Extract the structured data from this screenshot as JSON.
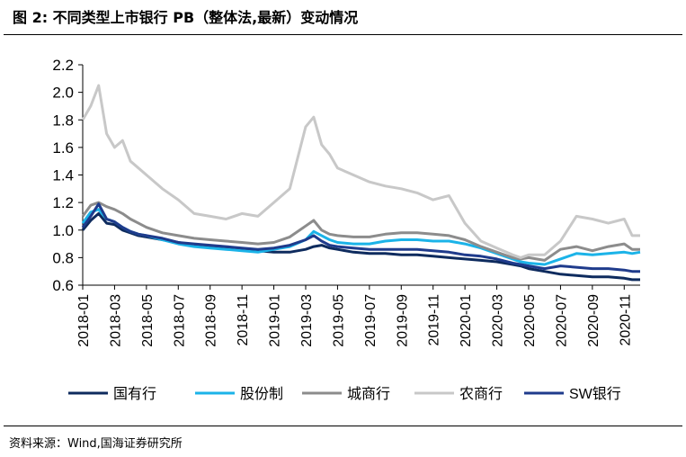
{
  "figure": {
    "title": "图 2:  不同类型上市银行 PB（整体法,最新）变动情况",
    "source": "资料来源：Wind,国海证券研究所"
  },
  "chart_data": {
    "type": "line",
    "y_ticks": [
      "0.6",
      "0.8",
      "1.0",
      "1.2",
      "1.4",
      "1.6",
      "1.8",
      "2.0",
      "2.2"
    ],
    "ylim": [
      0.6,
      2.2
    ],
    "x_ticks": [
      "2018-01",
      "2018-03",
      "2018-05",
      "2018-07",
      "2018-09",
      "2018-11",
      "2019-01",
      "2019-03",
      "2019-05",
      "2019-07",
      "2019-09",
      "2019-11",
      "2020-01",
      "2020-03",
      "2020-05",
      "2020-07",
      "2020-09",
      "2020-11"
    ],
    "xlim": [
      0,
      35
    ],
    "grid": false,
    "legend_position": "bottom",
    "series": [
      {
        "name": "国有行",
        "color": "#0e2b5e",
        "x": [
          0,
          0.5,
          1,
          1.5,
          2,
          2.5,
          3,
          3.5,
          4,
          5,
          6,
          7,
          8,
          9,
          10,
          11,
          12,
          13,
          14,
          14.5,
          15,
          15.5,
          16,
          17,
          18,
          19,
          20,
          21,
          22,
          23,
          24,
          25,
          26,
          27,
          27.5,
          28,
          29,
          30,
          31,
          32,
          33,
          34,
          34.5,
          35
        ],
        "y": [
          1.0,
          1.07,
          1.12,
          1.05,
          1.04,
          1.0,
          0.98,
          0.96,
          0.95,
          0.93,
          0.91,
          0.89,
          0.88,
          0.87,
          0.86,
          0.85,
          0.84,
          0.84,
          0.86,
          0.88,
          0.89,
          0.87,
          0.86,
          0.84,
          0.83,
          0.83,
          0.82,
          0.82,
          0.81,
          0.8,
          0.79,
          0.78,
          0.77,
          0.75,
          0.74,
          0.72,
          0.7,
          0.68,
          0.67,
          0.66,
          0.66,
          0.65,
          0.64,
          0.64
        ]
      },
      {
        "name": "股份制",
        "color": "#1bb3e8",
        "x": [
          0,
          0.5,
          1,
          1.5,
          2,
          2.5,
          3,
          3.5,
          4,
          5,
          6,
          7,
          8,
          9,
          10,
          11,
          12,
          13,
          14,
          14.5,
          15,
          15.5,
          16,
          17,
          18,
          19,
          20,
          21,
          22,
          23,
          24,
          25,
          26,
          27,
          27.5,
          28,
          29,
          30,
          31,
          32,
          33,
          34,
          34.5,
          35
        ],
        "y": [
          1.05,
          1.13,
          1.15,
          1.08,
          1.06,
          1.02,
          0.99,
          0.97,
          0.96,
          0.93,
          0.9,
          0.88,
          0.87,
          0.86,
          0.85,
          0.84,
          0.86,
          0.88,
          0.93,
          0.99,
          0.96,
          0.93,
          0.91,
          0.9,
          0.9,
          0.92,
          0.93,
          0.93,
          0.92,
          0.92,
          0.9,
          0.87,
          0.83,
          0.79,
          0.77,
          0.76,
          0.75,
          0.79,
          0.83,
          0.82,
          0.83,
          0.84,
          0.83,
          0.84
        ]
      },
      {
        "name": "城商行",
        "color": "#8c8c8c",
        "x": [
          0,
          0.5,
          1,
          1.5,
          2,
          2.5,
          3,
          3.5,
          4,
          5,
          6,
          7,
          8,
          9,
          10,
          11,
          12,
          13,
          14,
          14.5,
          15,
          15.5,
          16,
          17,
          18,
          19,
          20,
          21,
          22,
          23,
          24,
          25,
          26,
          27,
          27.5,
          28,
          29,
          30,
          31,
          32,
          33,
          34,
          34.5,
          35
        ],
        "y": [
          1.1,
          1.18,
          1.2,
          1.17,
          1.15,
          1.12,
          1.08,
          1.05,
          1.02,
          0.98,
          0.96,
          0.94,
          0.93,
          0.92,
          0.91,
          0.9,
          0.91,
          0.95,
          1.03,
          1.07,
          1.0,
          0.97,
          0.96,
          0.95,
          0.95,
          0.97,
          0.98,
          0.98,
          0.97,
          0.96,
          0.93,
          0.88,
          0.84,
          0.8,
          0.79,
          0.8,
          0.78,
          0.86,
          0.88,
          0.85,
          0.88,
          0.9,
          0.86,
          0.86
        ]
      },
      {
        "name": "农商行",
        "color": "#c8c8c8",
        "x": [
          0,
          0.5,
          1,
          1.5,
          2,
          2.5,
          3,
          3.5,
          4,
          5,
          6,
          7,
          8,
          9,
          10,
          11,
          12,
          13,
          14,
          14.5,
          15,
          15.5,
          16,
          17,
          18,
          19,
          20,
          21,
          22,
          23,
          24,
          25,
          26,
          27,
          27.5,
          28,
          29,
          30,
          31,
          32,
          33,
          34,
          34.5,
          35
        ],
        "y": [
          1.8,
          1.9,
          2.05,
          1.7,
          1.6,
          1.65,
          1.5,
          1.45,
          1.4,
          1.3,
          1.22,
          1.12,
          1.1,
          1.08,
          1.12,
          1.1,
          1.2,
          1.3,
          1.75,
          1.82,
          1.62,
          1.55,
          1.45,
          1.4,
          1.35,
          1.32,
          1.3,
          1.27,
          1.22,
          1.25,
          1.05,
          0.92,
          0.87,
          0.82,
          0.8,
          0.82,
          0.82,
          0.92,
          1.1,
          1.08,
          1.05,
          1.08,
          0.96,
          0.96
        ]
      },
      {
        "name": "SW银行",
        "color": "#1f3b8c",
        "x": [
          0,
          0.5,
          1,
          1.5,
          2,
          2.5,
          3,
          3.5,
          4,
          5,
          6,
          7,
          8,
          9,
          10,
          11,
          12,
          13,
          14,
          14.5,
          15,
          15.5,
          16,
          17,
          18,
          19,
          20,
          21,
          22,
          23,
          24,
          25,
          26,
          27,
          27.5,
          28,
          29,
          30,
          31,
          32,
          33,
          34,
          34.5,
          35
        ],
        "y": [
          1.02,
          1.1,
          1.19,
          1.08,
          1.06,
          1.02,
          0.99,
          0.97,
          0.96,
          0.94,
          0.91,
          0.9,
          0.89,
          0.88,
          0.87,
          0.86,
          0.87,
          0.89,
          0.93,
          0.96,
          0.92,
          0.89,
          0.88,
          0.87,
          0.86,
          0.86,
          0.86,
          0.86,
          0.85,
          0.84,
          0.82,
          0.81,
          0.79,
          0.76,
          0.75,
          0.74,
          0.72,
          0.74,
          0.73,
          0.72,
          0.72,
          0.71,
          0.7,
          0.7
        ]
      }
    ]
  }
}
